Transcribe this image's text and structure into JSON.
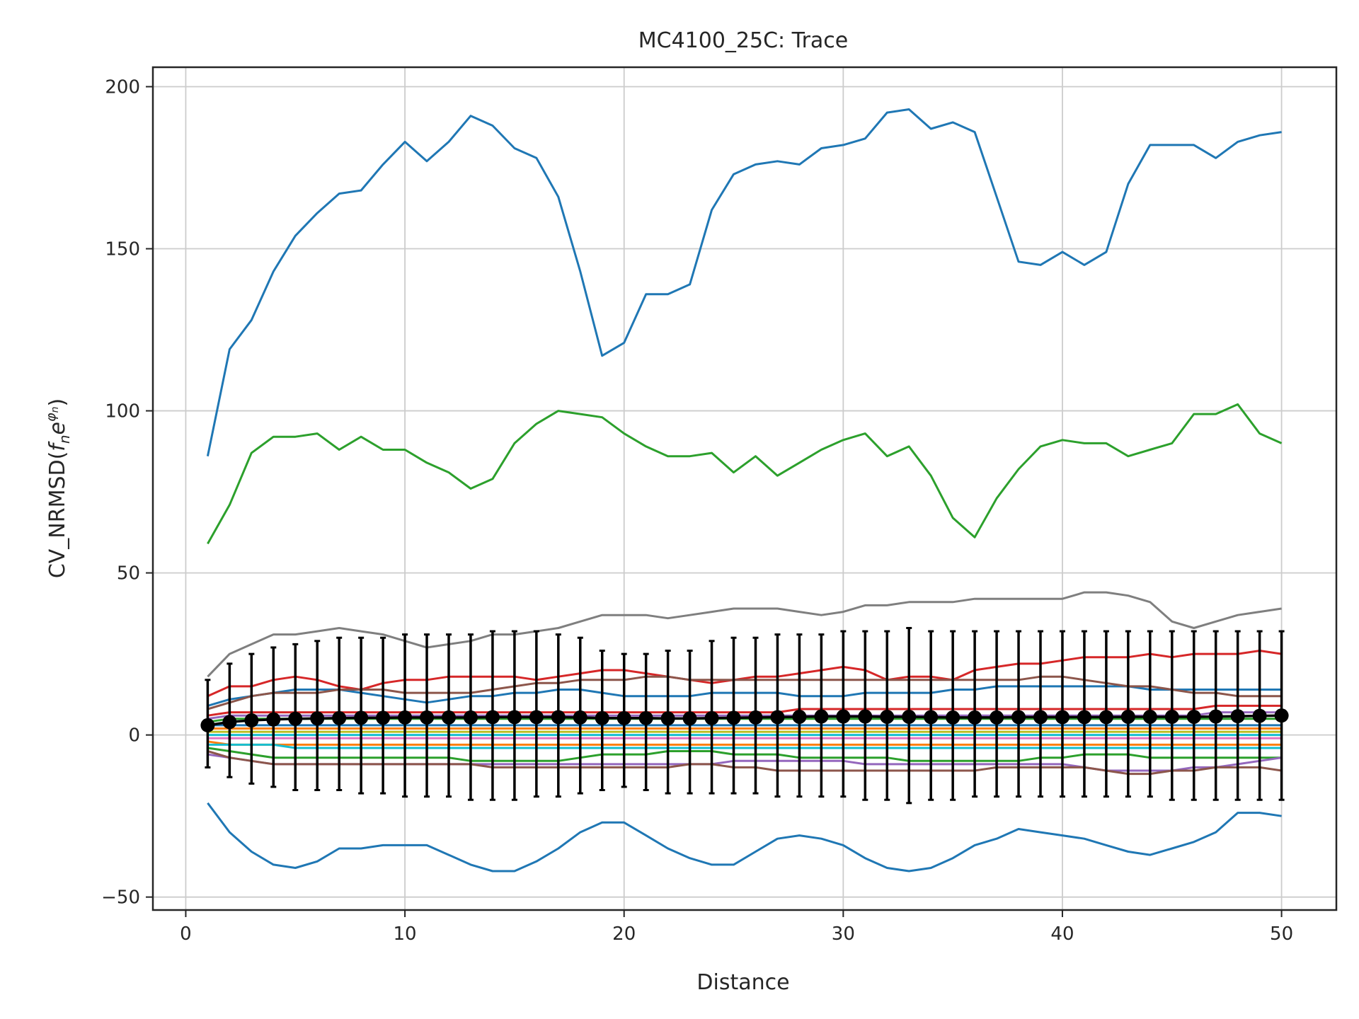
{
  "chart_data": {
    "type": "line",
    "title": "MC4100_25C: Trace",
    "xlabel": "Distance",
    "ylabel_main": "CV_NRMSD(",
    "ylabel_f": "f",
    "ylabel_n": "n",
    "ylabel_e": "e",
    "ylabel_phi": "φ",
    "ylabel_close": ")",
    "xlim": [
      -1.5,
      52.5
    ],
    "ylim": [
      -54,
      206
    ],
    "xticks": [
      0,
      10,
      20,
      30,
      40,
      50
    ],
    "xtick_labels": [
      "0",
      "10",
      "20",
      "30",
      "40",
      "50"
    ],
    "yticks": [
      -50,
      0,
      50,
      100,
      150,
      200
    ],
    "ytick_labels": [
      "−50",
      "0",
      "50",
      "100",
      "150",
      "200"
    ],
    "grid": true,
    "legend": "none",
    "x": [
      1,
      2,
      3,
      4,
      5,
      6,
      7,
      8,
      9,
      10,
      11,
      12,
      13,
      14,
      15,
      16,
      17,
      18,
      19,
      20,
      21,
      22,
      23,
      24,
      25,
      26,
      27,
      28,
      29,
      30,
      31,
      32,
      33,
      34,
      35,
      36,
      37,
      38,
      39,
      40,
      41,
      42,
      43,
      44,
      45,
      46,
      47,
      48,
      49,
      50
    ],
    "series": [
      {
        "color": "#1f77b4",
        "values": [
          86,
          119,
          128,
          143,
          154,
          161,
          167,
          168,
          176,
          183,
          177,
          183,
          191,
          188,
          181,
          178,
          166,
          143,
          117,
          121,
          136,
          136,
          139,
          162,
          173,
          176,
          177,
          176,
          181,
          182,
          184,
          192,
          193,
          187,
          189,
          186,
          166,
          146,
          145,
          149,
          145,
          149,
          170,
          182,
          182,
          182,
          178,
          183,
          185,
          186
        ]
      },
      {
        "color": "#2ca02c",
        "values": [
          59,
          71,
          87,
          92,
          92,
          93,
          88,
          92,
          88,
          88,
          84,
          81,
          76,
          79,
          90,
          96,
          100,
          99,
          98,
          93,
          89,
          86,
          86,
          87,
          81,
          86,
          80,
          84,
          88,
          91,
          93,
          86,
          89,
          80,
          67,
          61,
          73,
          82,
          89,
          91,
          90,
          90,
          86,
          88,
          90,
          99,
          99,
          102,
          93,
          90
        ]
      },
      {
        "color": "#7f7f7f",
        "values": [
          18,
          25,
          28,
          31,
          31,
          32,
          33,
          32,
          31,
          29,
          27,
          28,
          29,
          31,
          31,
          32,
          33,
          35,
          37,
          37,
          37,
          36,
          37,
          38,
          39,
          39,
          39,
          38,
          37,
          38,
          40,
          40,
          41,
          41,
          41,
          42,
          42,
          42,
          42,
          42,
          44,
          44,
          43,
          41,
          35,
          33,
          35,
          37,
          38,
          39
        ]
      },
      {
        "color": "#d62728",
        "values": [
          12,
          15,
          15,
          17,
          18,
          17,
          15,
          14,
          16,
          17,
          17,
          18,
          18,
          18,
          18,
          17,
          18,
          19,
          20,
          20,
          19,
          18,
          17,
          16,
          17,
          18,
          18,
          19,
          20,
          21,
          20,
          17,
          18,
          18,
          17,
          20,
          21,
          22,
          22,
          23,
          24,
          24,
          24,
          25,
          24,
          25,
          25,
          25,
          26,
          25
        ]
      },
      {
        "color": "#1f77b4",
        "values": [
          9,
          11,
          12,
          13,
          14,
          14,
          14,
          13,
          12,
          11,
          10,
          11,
          12,
          12,
          13,
          13,
          14,
          14,
          13,
          12,
          12,
          12,
          12,
          13,
          13,
          13,
          13,
          12,
          12,
          12,
          13,
          13,
          13,
          13,
          14,
          14,
          15,
          15,
          15,
          15,
          15,
          15,
          15,
          14,
          14,
          14,
          14,
          14,
          14,
          14
        ]
      },
      {
        "color": "#8c564b",
        "values": [
          8,
          10,
          12,
          13,
          13,
          13,
          14,
          14,
          14,
          13,
          13,
          13,
          13,
          14,
          15,
          16,
          16,
          17,
          17,
          17,
          18,
          18,
          17,
          17,
          17,
          17,
          17,
          17,
          17,
          17,
          17,
          17,
          17,
          17,
          17,
          17,
          17,
          17,
          18,
          18,
          17,
          16,
          15,
          15,
          14,
          13,
          13,
          12,
          12,
          12
        ]
      },
      {
        "color": "#d62728",
        "values": [
          6,
          7,
          7,
          7,
          7,
          7,
          7,
          7,
          7,
          7,
          7,
          7,
          7,
          7,
          7,
          7,
          7,
          7,
          7,
          7,
          7,
          7,
          7,
          7,
          7,
          7,
          7,
          8,
          8,
          8,
          8,
          8,
          8,
          8,
          8,
          8,
          8,
          8,
          8,
          8,
          8,
          8,
          8,
          8,
          8,
          8,
          9,
          9,
          9,
          9
        ]
      },
      {
        "color": "#9467bd",
        "values": [
          5,
          6,
          6,
          6,
          6,
          6,
          6,
          6,
          6,
          6,
          6,
          6,
          6,
          6,
          6,
          6,
          6,
          6,
          6,
          6,
          6,
          6,
          6,
          6,
          6,
          6,
          6,
          6,
          6,
          6,
          6,
          6,
          6,
          6,
          6,
          6,
          6,
          6,
          6,
          6,
          6,
          6,
          6,
          6,
          6,
          6,
          7,
          7,
          7,
          7
        ]
      },
      {
        "color": "#2ca02c",
        "values": [
          4,
          5,
          5,
          5,
          5,
          5,
          5,
          5,
          5,
          5,
          5,
          5,
          5,
          5,
          5,
          5,
          5,
          5,
          5,
          5,
          5,
          5,
          5,
          5,
          5,
          5,
          5,
          5,
          5,
          5,
          5,
          5,
          5,
          5,
          5,
          5,
          5,
          5,
          5,
          5,
          5,
          5,
          5,
          5,
          5,
          5,
          5,
          5,
          5,
          5
        ]
      },
      {
        "color": "#1f77b4",
        "values": [
          3,
          3,
          3,
          3,
          3,
          3,
          3,
          3,
          3,
          3,
          3,
          3,
          3,
          3,
          3,
          3,
          3,
          3,
          3,
          3,
          3,
          3,
          3,
          3,
          3,
          3,
          3,
          3,
          3,
          3,
          3,
          3,
          3,
          3,
          3,
          3,
          3,
          3,
          3,
          3,
          3,
          3,
          3,
          3,
          3,
          3,
          3,
          3,
          3,
          3
        ]
      },
      {
        "color": "#ff7f0e",
        "values": [
          2,
          2,
          2,
          2,
          2,
          2,
          2,
          2,
          2,
          2,
          2,
          2,
          2,
          2,
          2,
          2,
          2,
          2,
          2,
          2,
          2,
          2,
          2,
          2,
          2,
          2,
          2,
          2,
          2,
          2,
          2,
          2,
          2,
          2,
          2,
          2,
          2,
          2,
          2,
          2,
          2,
          2,
          2,
          2,
          2,
          2,
          2,
          2,
          2,
          2
        ]
      },
      {
        "color": "#bcbd22",
        "values": [
          1,
          1,
          1,
          1,
          1,
          1,
          1,
          1,
          1,
          1,
          1,
          1,
          1,
          1,
          1,
          1,
          1,
          1,
          1,
          1,
          1,
          1,
          1,
          1,
          1,
          1,
          1,
          1,
          1,
          1,
          1,
          1,
          1,
          1,
          1,
          1,
          1,
          1,
          1,
          1,
          1,
          1,
          1,
          1,
          1,
          1,
          1,
          1,
          1,
          1
        ]
      },
      {
        "color": "#17becf",
        "values": [
          0,
          0,
          0,
          0,
          0,
          0,
          0,
          0,
          0,
          0,
          0,
          0,
          0,
          0,
          0,
          0,
          0,
          0,
          0,
          0,
          0,
          0,
          0,
          0,
          0,
          0,
          0,
          0,
          0,
          0,
          0,
          0,
          0,
          0,
          0,
          0,
          0,
          0,
          0,
          0,
          0,
          0,
          0,
          0,
          0,
          0,
          0,
          0,
          0,
          0
        ]
      },
      {
        "color": "#e377c2",
        "values": [
          -1,
          -1,
          -1,
          -1,
          -1,
          -1,
          -1,
          -1,
          -1,
          -1,
          -1,
          -1,
          -1,
          -1,
          -1,
          -1,
          -1,
          -1,
          -1,
          -1,
          -1,
          -1,
          -1,
          -1,
          -1,
          -1,
          -1,
          -1,
          -1,
          -1,
          -1,
          -1,
          -1,
          -1,
          -1,
          -1,
          -1,
          -1,
          -1,
          -1,
          -1,
          -1,
          -1,
          -1,
          -1,
          -1,
          -1,
          -1,
          -1,
          -1
        ]
      },
      {
        "color": "#ff7f0e",
        "values": [
          -2,
          -3,
          -3,
          -3,
          -3,
          -3,
          -3,
          -3,
          -3,
          -3,
          -3,
          -3,
          -3,
          -3,
          -3,
          -3,
          -3,
          -3,
          -3,
          -3,
          -3,
          -3,
          -3,
          -3,
          -3,
          -3,
          -3,
          -3,
          -3,
          -3,
          -3,
          -3,
          -3,
          -3,
          -3,
          -3,
          -3,
          -3,
          -3,
          -3,
          -3,
          -3,
          -3,
          -3,
          -3,
          -3,
          -3,
          -3,
          -3,
          -3
        ]
      },
      {
        "color": "#17becf",
        "values": [
          -3,
          -3,
          -3,
          -3,
          -4,
          -4,
          -4,
          -4,
          -4,
          -4,
          -4,
          -4,
          -4,
          -4,
          -4,
          -4,
          -4,
          -4,
          -4,
          -4,
          -4,
          -4,
          -4,
          -4,
          -4,
          -4,
          -4,
          -4,
          -4,
          -4,
          -4,
          -4,
          -4,
          -4,
          -4,
          -4,
          -4,
          -4,
          -4,
          -4,
          -4,
          -4,
          -4,
          -4,
          -4,
          -4,
          -4,
          -4,
          -4,
          -4
        ]
      },
      {
        "color": "#2ca02c",
        "values": [
          -4,
          -5,
          -6,
          -7,
          -7,
          -7,
          -7,
          -7,
          -7,
          -7,
          -7,
          -7,
          -8,
          -8,
          -8,
          -8,
          -8,
          -7,
          -6,
          -6,
          -6,
          -5,
          -5,
          -5,
          -6,
          -6,
          -6,
          -7,
          -7,
          -7,
          -7,
          -7,
          -8,
          -8,
          -8,
          -8,
          -8,
          -8,
          -7,
          -7,
          -6,
          -6,
          -6,
          -7,
          -7,
          -7,
          -7,
          -7,
          -7,
          -7
        ]
      },
      {
        "color": "#9467bd",
        "values": [
          -6,
          -7,
          -8,
          -9,
          -9,
          -9,
          -9,
          -9,
          -9,
          -9,
          -9,
          -9,
          -9,
          -9,
          -9,
          -9,
          -9,
          -9,
          -9,
          -9,
          -9,
          -9,
          -9,
          -9,
          -8,
          -8,
          -8,
          -8,
          -8,
          -8,
          -9,
          -9,
          -9,
          -9,
          -9,
          -9,
          -9,
          -9,
          -9,
          -9,
          -10,
          -11,
          -11,
          -11,
          -11,
          -10,
          -10,
          -9,
          -8,
          -7
        ]
      },
      {
        "color": "#8c564b",
        "values": [
          -5,
          -7,
          -8,
          -9,
          -9,
          -9,
          -9,
          -9,
          -9,
          -9,
          -9,
          -9,
          -9,
          -10,
          -10,
          -10,
          -10,
          -10,
          -10,
          -10,
          -10,
          -10,
          -9,
          -9,
          -10,
          -10,
          -11,
          -11,
          -11,
          -11,
          -11,
          -11,
          -11,
          -11,
          -11,
          -11,
          -10,
          -10,
          -10,
          -10,
          -10,
          -11,
          -12,
          -12,
          -11,
          -11,
          -10,
          -10,
          -10,
          -11
        ]
      },
      {
        "color": "#1f77b4",
        "values": [
          -21,
          -30,
          -36,
          -40,
          -41,
          -39,
          -35,
          -35,
          -34,
          -34,
          -34,
          -37,
          -40,
          -42,
          -42,
          -39,
          -35,
          -30,
          -27,
          -27,
          -31,
          -35,
          -38,
          -40,
          -40,
          -36,
          -32,
          -31,
          -32,
          -34,
          -38,
          -41,
          -42,
          -41,
          -38,
          -34,
          -32,
          -29,
          -30,
          -31,
          -32,
          -34,
          -36,
          -37,
          -35,
          -33,
          -30,
          -24,
          -24,
          -25
        ]
      }
    ],
    "mean": {
      "name": "",
      "color": "#000000",
      "values": [
        3.0,
        4.0,
        4.5,
        4.8,
        5.0,
        5.1,
        5.2,
        5.3,
        5.3,
        5.4,
        5.4,
        5.4,
        5.4,
        5.5,
        5.5,
        5.5,
        5.5,
        5.4,
        5.2,
        5.2,
        5.2,
        5.1,
        5.1,
        5.2,
        5.3,
        5.4,
        5.5,
        5.6,
        5.7,
        5.7,
        5.7,
        5.6,
        5.6,
        5.5,
        5.4,
        5.4,
        5.4,
        5.5,
        5.5,
        5.5,
        5.5,
        5.5,
        5.6,
        5.6,
        5.6,
        5.6,
        5.7,
        5.8,
        5.9,
        6.0
      ],
      "err_upper": [
        17,
        22,
        25,
        27,
        28,
        29,
        30,
        30,
        30,
        31,
        31,
        31,
        31,
        32,
        32,
        32,
        31,
        30,
        26,
        25,
        25,
        26,
        26,
        29,
        30,
        30,
        31,
        31,
        31,
        32,
        32,
        32,
        33,
        32,
        32,
        32,
        32,
        32,
        32,
        32,
        32,
        32,
        32,
        32,
        32,
        32,
        32,
        32,
        32,
        32
      ],
      "err_lower": [
        -10,
        -13,
        -15,
        -16,
        -17,
        -17,
        -17,
        -18,
        -18,
        -19,
        -19,
        -19,
        -20,
        -20,
        -20,
        -19,
        -19,
        -18,
        -17,
        -16,
        -17,
        -18,
        -18,
        -18,
        -18,
        -18,
        -19,
        -19,
        -19,
        -19,
        -20,
        -20,
        -21,
        -20,
        -20,
        -19,
        -19,
        -19,
        -19,
        -19,
        -19,
        -19,
        -19,
        -19,
        -20,
        -20,
        -20,
        -20,
        -20,
        -20
      ]
    }
  }
}
